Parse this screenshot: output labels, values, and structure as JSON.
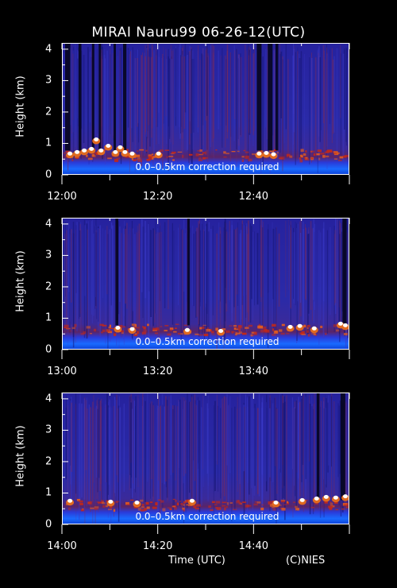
{
  "title": "MIRAI Nauru99 06-26-12(UTC)",
  "xlabel": "Time (UTC)",
  "credit": "(C)NIES",
  "colors": {
    "background": "#1a1a9a",
    "cloud": "#ffffff",
    "aerosol": "#c0281a",
    "surface": "#0a6aff"
  },
  "chart_data": [
    {
      "type": "heatmap",
      "ylabel": "Height (km)",
      "yticks": [
        "0",
        "1",
        "2",
        "3",
        "4"
      ],
      "ylim": [
        0,
        4.2
      ],
      "xticks": [
        "12:00",
        "12:20",
        "12:40"
      ],
      "xlim_minutes": [
        0,
        60
      ],
      "note": "0.0–0.5km correction required",
      "cloud_events": [
        {
          "t": 1.5,
          "h": 0.7
        },
        {
          "t": 3,
          "h": 0.75
        },
        {
          "t": 4.5,
          "h": 0.8
        },
        {
          "t": 6,
          "h": 0.85
        },
        {
          "t": 7,
          "h": 1.15
        },
        {
          "t": 8,
          "h": 0.8
        },
        {
          "t": 9.5,
          "h": 0.95
        },
        {
          "t": 11,
          "h": 0.75
        },
        {
          "t": 12,
          "h": 0.9
        },
        {
          "t": 13,
          "h": 0.75
        },
        {
          "t": 14.5,
          "h": 0.7
        },
        {
          "t": 20,
          "h": 0.7
        },
        {
          "t": 41,
          "h": 0.7
        },
        {
          "t": 42.5,
          "h": 0.72
        },
        {
          "t": 44,
          "h": 0.68
        }
      ],
      "dark_bands": [
        {
          "t0": 0.5,
          "t1": 1.6
        },
        {
          "t0": 3.3,
          "t1": 3.9
        },
        {
          "t0": 6.1,
          "t1": 6.6
        },
        {
          "t0": 7.5,
          "t1": 8.0
        },
        {
          "t0": 10.6,
          "t1": 11.1
        },
        {
          "t0": 12.6,
          "t1": 13.3
        },
        {
          "t0": 40.5,
          "t1": 41.5
        },
        {
          "t0": 42.8,
          "t1": 43.8
        },
        {
          "t0": 44.4,
          "t1": 45.0
        }
      ]
    },
    {
      "type": "heatmap",
      "ylabel": "Height (km)",
      "yticks": [
        "0",
        "1",
        "2",
        "3",
        "4"
      ],
      "ylim": [
        0,
        4.2
      ],
      "xticks": [
        "13:00",
        "13:20",
        "13:40"
      ],
      "xlim_minutes": [
        0,
        60
      ],
      "note": "0.0–0.5km correction required",
      "cloud_events": [
        {
          "t": 11.5,
          "h": 0.72
        },
        {
          "t": 14.5,
          "h": 0.68
        },
        {
          "t": 26,
          "h": 0.65
        },
        {
          "t": 33,
          "h": 0.62
        },
        {
          "t": 47.5,
          "h": 0.75
        },
        {
          "t": 49.5,
          "h": 0.78
        },
        {
          "t": 52.5,
          "h": 0.7
        },
        {
          "t": 58,
          "h": 0.85
        },
        {
          "t": 59,
          "h": 0.8
        }
      ],
      "dark_bands": [
        {
          "t0": 11.0,
          "t1": 11.6
        },
        {
          "t0": 26.0,
          "t1": 26.5
        },
        {
          "t0": 58.4,
          "t1": 59.3
        }
      ]
    },
    {
      "type": "heatmap",
      "ylabel": "Height (km)",
      "yticks": [
        "0",
        "1",
        "2",
        "3",
        "4"
      ],
      "ylim": [
        0,
        4.2
      ],
      "xticks": [
        "14:00",
        "14:20",
        "14:40"
      ],
      "xlim_minutes": [
        0,
        60
      ],
      "note": "0.0–0.5km correction required",
      "cloud_events": [
        {
          "t": 1.5,
          "h": 0.78
        },
        {
          "t": 10,
          "h": 0.75
        },
        {
          "t": 15.5,
          "h": 0.72
        },
        {
          "t": 27,
          "h": 0.78
        },
        {
          "t": 44.5,
          "h": 0.72
        },
        {
          "t": 50,
          "h": 0.8
        },
        {
          "t": 53,
          "h": 0.85
        },
        {
          "t": 55,
          "h": 0.9
        },
        {
          "t": 57,
          "h": 0.88
        },
        {
          "t": 59,
          "h": 0.92
        }
      ],
      "dark_bands": [
        {
          "t0": 53.0,
          "t1": 53.6
        },
        {
          "t0": 58.0,
          "t1": 59.0
        }
      ]
    }
  ]
}
